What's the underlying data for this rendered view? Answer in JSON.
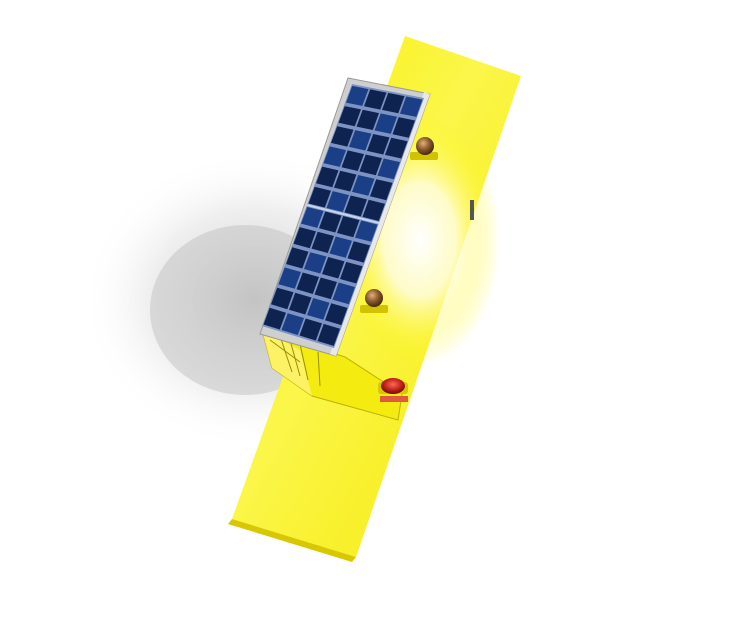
{
  "scene": {
    "background_color": "#ffffff",
    "subject": "rendered-solar-powered-trailer-top-view",
    "colors": {
      "body_yellow": "#f7f000",
      "body_highlight": "#fffde0",
      "body_shadow": "#d8c800",
      "panel_blue": "#0e2350",
      "panel_cell": "#1a3f86",
      "panel_grid": "#7d93c4",
      "frame_metal": "#c9c9c9",
      "lamp_bronze": "#8a5a2c",
      "beacon_red": "#c0201a",
      "cast_shadow": "#cfcfcf"
    },
    "solar_panel": {
      "cell_columns": 4,
      "cell_rows": 12
    },
    "lamps_count": 2,
    "beacon_count": 1
  }
}
